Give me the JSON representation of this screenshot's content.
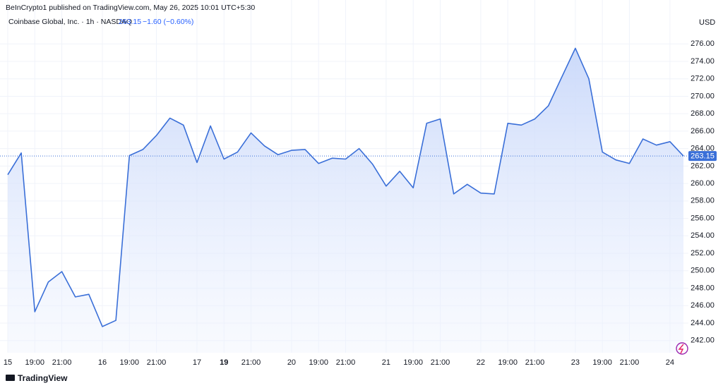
{
  "header": {
    "publisher": "BeInCrypto1 published on TradingView.com, May 26, 2025 10:01 UTC+5:30",
    "brand": "TradingView"
  },
  "chart_data": {
    "type": "area",
    "title": "Coinbase Global, Inc. · 1h · NASDAQ",
    "last_price": 263.15,
    "change_label": "−1.60 (−0.60%)",
    "currency": "USD",
    "color": "#3a6fd8",
    "grid": true,
    "series": [
      {
        "name": "Coinbase Global, Inc.",
        "color": "#3a6fd8",
        "values": [
          261.0,
          263.5,
          245.3,
          248.7,
          249.9,
          247.0,
          247.3,
          243.6,
          244.3,
          263.2,
          263.9,
          265.5,
          267.5,
          266.7,
          262.4,
          266.6,
          262.8,
          263.6,
          265.8,
          264.3,
          263.3,
          263.8,
          263.9,
          262.3,
          262.9,
          262.8,
          264.0,
          262.2,
          259.7,
          261.4,
          259.5,
          266.9,
          267.4,
          258.8,
          259.9,
          258.9,
          258.8,
          266.9,
          266.7,
          267.4,
          268.9,
          272.2,
          275.5,
          272.0,
          263.6,
          262.7,
          262.3,
          265.1,
          264.4,
          264.8,
          263.15
        ]
      }
    ],
    "xlim": [
      0,
      50.3
    ],
    "xticks": [
      {
        "value": 0,
        "label": "15"
      },
      {
        "value": 2,
        "label": "19:00"
      },
      {
        "value": 4,
        "label": "21:00"
      },
      {
        "value": 7,
        "label": "16"
      },
      {
        "value": 9,
        "label": "19:00"
      },
      {
        "value": 11,
        "label": "21:00"
      },
      {
        "value": 14,
        "label": "17"
      },
      {
        "value": 16,
        "label": "19",
        "bold": true
      },
      {
        "value": 18,
        "label": "21:00"
      },
      {
        "value": 21,
        "label": "20"
      },
      {
        "value": 23,
        "label": "19:00"
      },
      {
        "value": 25,
        "label": "21:00"
      },
      {
        "value": 28,
        "label": "21"
      },
      {
        "value": 30,
        "label": "19:00"
      },
      {
        "value": 32,
        "label": "21:00"
      },
      {
        "value": 35,
        "label": "22"
      },
      {
        "value": 37,
        "label": "19:00"
      },
      {
        "value": 39,
        "label": "21:00"
      },
      {
        "value": 42,
        "label": "23"
      },
      {
        "value": 44,
        "label": "19:00"
      },
      {
        "value": 46,
        "label": "21:00"
      },
      {
        "value": 49,
        "label": "24"
      }
    ],
    "ylim": [
      240.6,
      277.8
    ],
    "yticks": [
      {
        "value": 242,
        "label": "242.00"
      },
      {
        "value": 244,
        "label": "244.00"
      },
      {
        "value": 246,
        "label": "246.00"
      },
      {
        "value": 248,
        "label": "248.00"
      },
      {
        "value": 250,
        "label": "250.00"
      },
      {
        "value": 252,
        "label": "252.00"
      },
      {
        "value": 254,
        "label": "254.00"
      },
      {
        "value": 256,
        "label": "256.00"
      },
      {
        "value": 258,
        "label": "258.00"
      },
      {
        "value": 260,
        "label": "260.00"
      },
      {
        "value": 262,
        "label": "262.00"
      },
      {
        "value": 264,
        "label": "264.00"
      },
      {
        "value": 266,
        "label": "266.00"
      },
      {
        "value": 268,
        "label": "268.00"
      },
      {
        "value": 270,
        "label": "270.00"
      },
      {
        "value": 272,
        "label": "272.00"
      },
      {
        "value": 274,
        "label": "274.00"
      },
      {
        "value": 276,
        "label": "276.00"
      }
    ]
  }
}
